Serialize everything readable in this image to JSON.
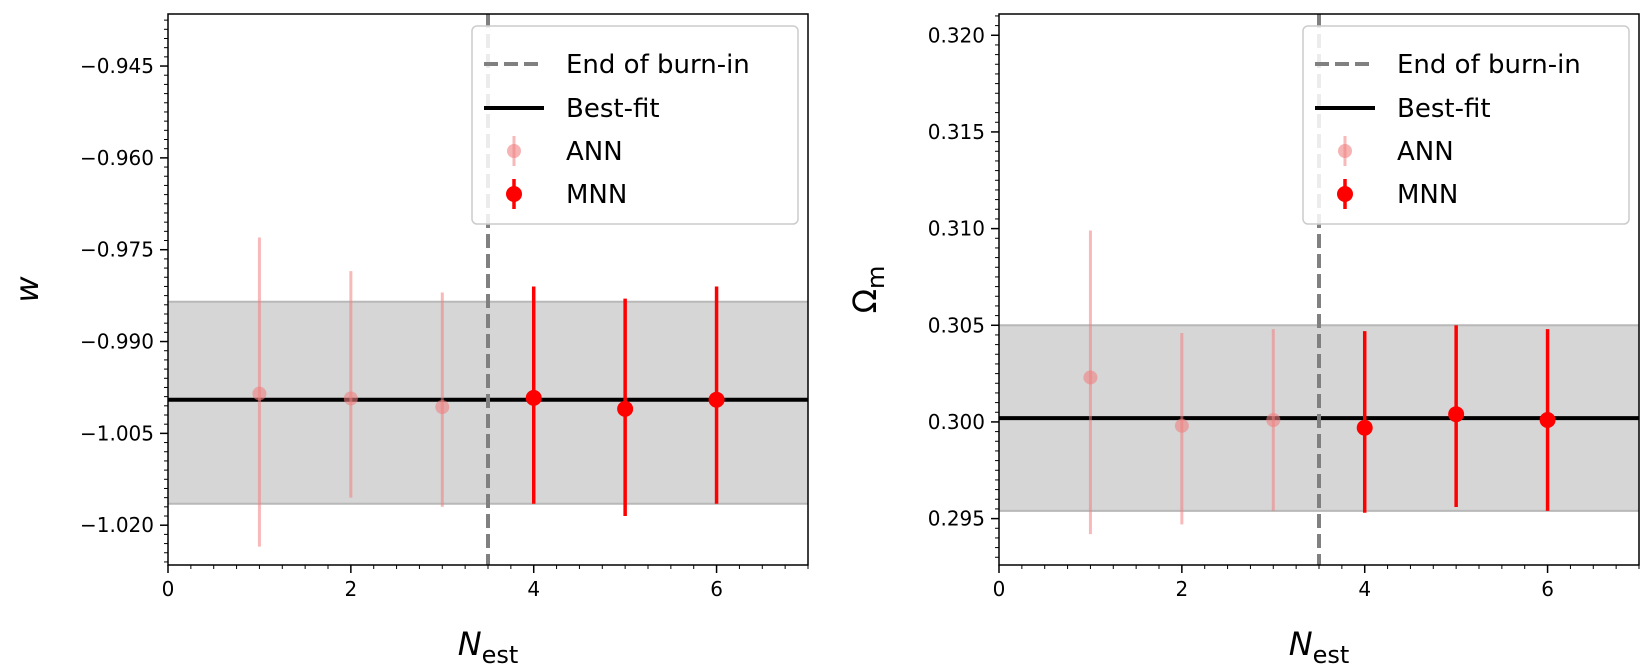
{
  "chart_data": [
    {
      "type": "scatter",
      "panel": "left",
      "ylabel": "w",
      "xlabel": "N",
      "xlabel_sub": "est",
      "xlim": [
        0,
        7
      ],
      "ylim": [
        -1.0265,
        -0.9365
      ],
      "xticks": [
        0,
        2,
        4,
        6
      ],
      "xtick_labels": [
        "0",
        "2",
        "4",
        "6"
      ],
      "yticks": [
        -1.02,
        -1.005,
        -0.99,
        -0.975,
        -0.96,
        -0.945
      ],
      "ytick_labels": [
        "−1.020",
        "−1.005",
        "−0.990",
        "−0.975",
        "−0.960",
        "−0.945"
      ],
      "best_fit": -0.9995,
      "band": [
        -1.0165,
        -0.9835
      ],
      "burn_in_x": 3.5,
      "legend": {
        "location": "upper right",
        "entries": [
          "End of burn-in",
          "Best-fit",
          "ANN",
          "MNN"
        ]
      },
      "series": [
        {
          "name": "ANN",
          "color": "#f08080",
          "x": [
            1,
            2,
            3
          ],
          "y": [
            -0.9985,
            -0.9993,
            -1.0007
          ],
          "yerr_low": [
            -1.0235,
            -1.0155,
            -1.017
          ],
          "yerr_high": [
            -0.973,
            -0.9785,
            -0.982
          ]
        },
        {
          "name": "MNN",
          "color": "#ff0000",
          "x": [
            4,
            5,
            6
          ],
          "y": [
            -0.9992,
            -1.001,
            -0.9995
          ],
          "yerr_low": [
            -1.0165,
            -1.0185,
            -1.0165
          ],
          "yerr_high": [
            -0.981,
            -0.983,
            -0.981
          ]
        }
      ]
    },
    {
      "type": "scatter",
      "panel": "right",
      "ylabel": "Ω",
      "ylabel_sub": "m",
      "xlabel": "N",
      "xlabel_sub": "est",
      "xlim": [
        0,
        7
      ],
      "ylim": [
        0.2926,
        0.3211
      ],
      "xticks": [
        0,
        2,
        4,
        6
      ],
      "xtick_labels": [
        "0",
        "2",
        "4",
        "6"
      ],
      "yticks": [
        0.295,
        0.3,
        0.305,
        0.31,
        0.315,
        0.32
      ],
      "ytick_labels": [
        "0.295",
        "0.300",
        "0.305",
        "0.310",
        "0.315",
        "0.320"
      ],
      "best_fit": 0.3002,
      "band": [
        0.2954,
        0.305
      ],
      "burn_in_x": 3.5,
      "legend": {
        "location": "upper right",
        "entries": [
          "End of burn-in",
          "Best-fit",
          "ANN",
          "MNN"
        ]
      },
      "series": [
        {
          "name": "ANN",
          "color": "#f08080",
          "x": [
            1,
            2,
            3
          ],
          "y": [
            0.3023,
            0.2998,
            0.3001
          ],
          "yerr_low": [
            0.2942,
            0.2947,
            0.2954
          ],
          "yerr_high": [
            0.3099,
            0.3046,
            0.3048
          ]
        },
        {
          "name": "MNN",
          "color": "#ff0000",
          "x": [
            4,
            5,
            6
          ],
          "y": [
            0.2997,
            0.3004,
            0.3001
          ],
          "yerr_low": [
            0.2953,
            0.2956,
            0.2954
          ],
          "yerr_high": [
            0.3047,
            0.305,
            0.3048
          ]
        }
      ]
    }
  ]
}
